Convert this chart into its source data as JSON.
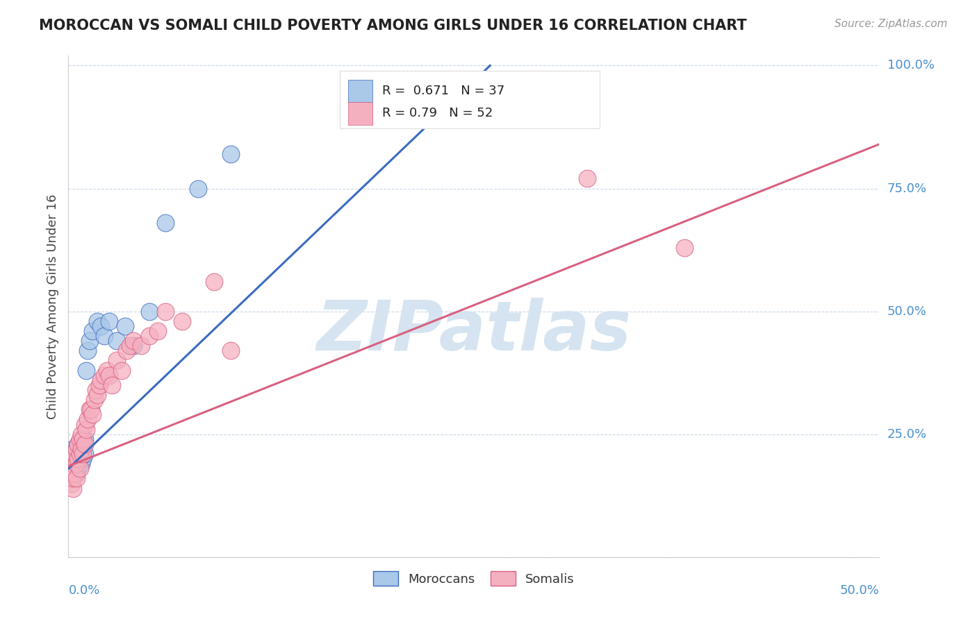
{
  "title": "MOROCCAN VS SOMALI CHILD POVERTY AMONG GIRLS UNDER 16 CORRELATION CHART",
  "source": "Source: ZipAtlas.com",
  "ylabel": "Child Poverty Among Girls Under 16",
  "watermark": "ZIPatlas",
  "legend_moroccan_label": "Moroccans",
  "legend_somali_label": "Somalis",
  "moroccan_R": 0.671,
  "moroccan_N": 37,
  "somali_R": 0.79,
  "somali_N": 52,
  "moroccan_color": "#aac8e8",
  "somali_color": "#f5b0c0",
  "moroccan_line_color": "#3a6bbf",
  "somali_line_color": "#d96080",
  "xlim": [
    0.0,
    0.5
  ],
  "ylim": [
    0.0,
    1.02
  ],
  "yticks": [
    0.0,
    0.25,
    0.5,
    0.75,
    1.0
  ],
  "ytick_labels": [
    "",
    "25.0%",
    "50.0%",
    "75.0%",
    "100.0%"
  ],
  "grid_color": "#c8d8e8",
  "background_color": "#ffffff",
  "moroccan_line": [
    [
      0.0,
      0.18
    ],
    [
      0.26,
      1.0
    ]
  ],
  "somali_line": [
    [
      0.0,
      0.185
    ],
    [
      0.5,
      0.84
    ]
  ],
  "moroccan_x": [
    0.001,
    0.002,
    0.002,
    0.003,
    0.003,
    0.003,
    0.004,
    0.004,
    0.005,
    0.005,
    0.005,
    0.006,
    0.006,
    0.006,
    0.007,
    0.007,
    0.008,
    0.008,
    0.009,
    0.009,
    0.01,
    0.01,
    0.011,
    0.012,
    0.013,
    0.015,
    0.018,
    0.02,
    0.022,
    0.025,
    0.03,
    0.035,
    0.04,
    0.05,
    0.06,
    0.08,
    0.1
  ],
  "moroccan_y": [
    0.19,
    0.18,
    0.2,
    0.19,
    0.2,
    0.22,
    0.19,
    0.21,
    0.17,
    0.2,
    0.22,
    0.18,
    0.21,
    0.23,
    0.2,
    0.22,
    0.19,
    0.23,
    0.2,
    0.22,
    0.21,
    0.24,
    0.38,
    0.42,
    0.44,
    0.46,
    0.48,
    0.47,
    0.45,
    0.48,
    0.44,
    0.47,
    0.43,
    0.5,
    0.68,
    0.75,
    0.82
  ],
  "somali_x": [
    0.001,
    0.001,
    0.002,
    0.002,
    0.003,
    0.003,
    0.003,
    0.004,
    0.004,
    0.004,
    0.005,
    0.005,
    0.005,
    0.006,
    0.006,
    0.007,
    0.007,
    0.007,
    0.008,
    0.008,
    0.009,
    0.009,
    0.01,
    0.01,
    0.011,
    0.012,
    0.013,
    0.014,
    0.015,
    0.016,
    0.017,
    0.018,
    0.019,
    0.02,
    0.022,
    0.024,
    0.025,
    0.027,
    0.03,
    0.033,
    0.036,
    0.038,
    0.04,
    0.045,
    0.05,
    0.055,
    0.06,
    0.07,
    0.09,
    0.1,
    0.32,
    0.38
  ],
  "somali_y": [
    0.16,
    0.18,
    0.15,
    0.17,
    0.14,
    0.16,
    0.19,
    0.17,
    0.2,
    0.21,
    0.16,
    0.19,
    0.22,
    0.2,
    0.23,
    0.18,
    0.21,
    0.24,
    0.22,
    0.25,
    0.21,
    0.24,
    0.23,
    0.27,
    0.26,
    0.28,
    0.3,
    0.3,
    0.29,
    0.32,
    0.34,
    0.33,
    0.35,
    0.36,
    0.37,
    0.38,
    0.37,
    0.35,
    0.4,
    0.38,
    0.42,
    0.43,
    0.44,
    0.43,
    0.45,
    0.46,
    0.5,
    0.48,
    0.56,
    0.42,
    0.77,
    0.63
  ]
}
